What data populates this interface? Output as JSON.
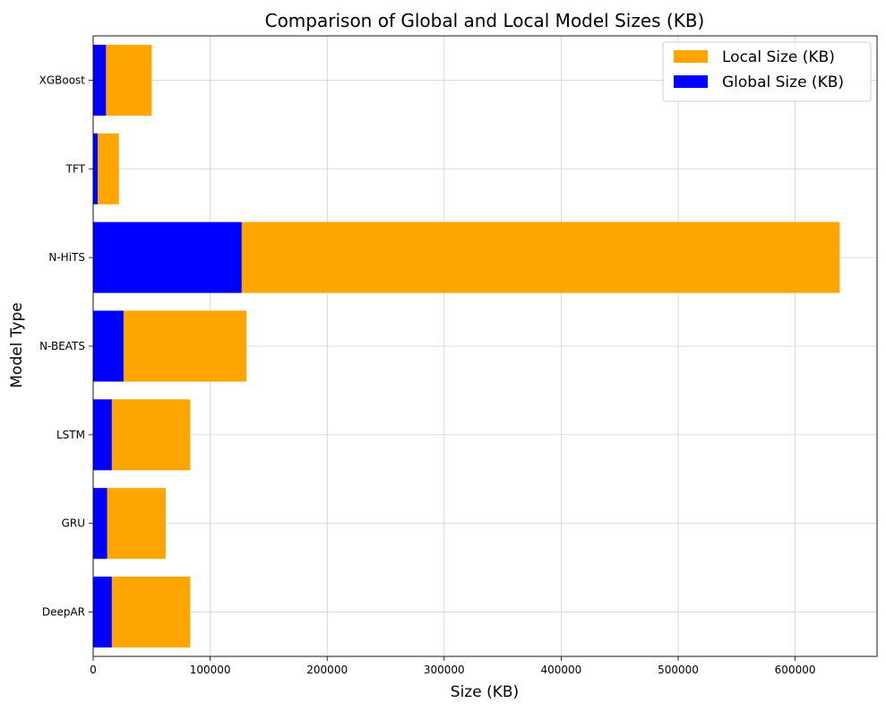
{
  "chart_data": {
    "type": "bar",
    "orientation": "horizontal",
    "stacked": true,
    "title": "Comparison of Global and Local Model Sizes (KB)",
    "xlabel": "Size (KB)",
    "ylabel": "Model Type",
    "categories": [
      "DeepAR",
      "GRU",
      "LSTM",
      "N-BEATS",
      "N-HiTS",
      "TFT",
      "XGBoost"
    ],
    "series": [
      {
        "name": "Global Size (KB)",
        "color": "#0000ff",
        "values": [
          16000,
          12000,
          16000,
          26000,
          127000,
          4000,
          11000
        ]
      },
      {
        "name": "Local Size (KB)",
        "color": "#ffa500",
        "values": [
          67000,
          50000,
          67000,
          105000,
          511000,
          18000,
          39000
        ]
      }
    ],
    "xlim": [
      0,
      670000
    ],
    "xticks": [
      0,
      100000,
      200000,
      300000,
      400000,
      500000,
      600000
    ],
    "xtick_labels": [
      "0",
      "100000",
      "200000",
      "300000",
      "400000",
      "500000",
      "600000"
    ],
    "grid": true,
    "legend_position": "top-right",
    "legend_order": [
      "Local Size (KB)",
      "Global Size (KB)"
    ]
  }
}
